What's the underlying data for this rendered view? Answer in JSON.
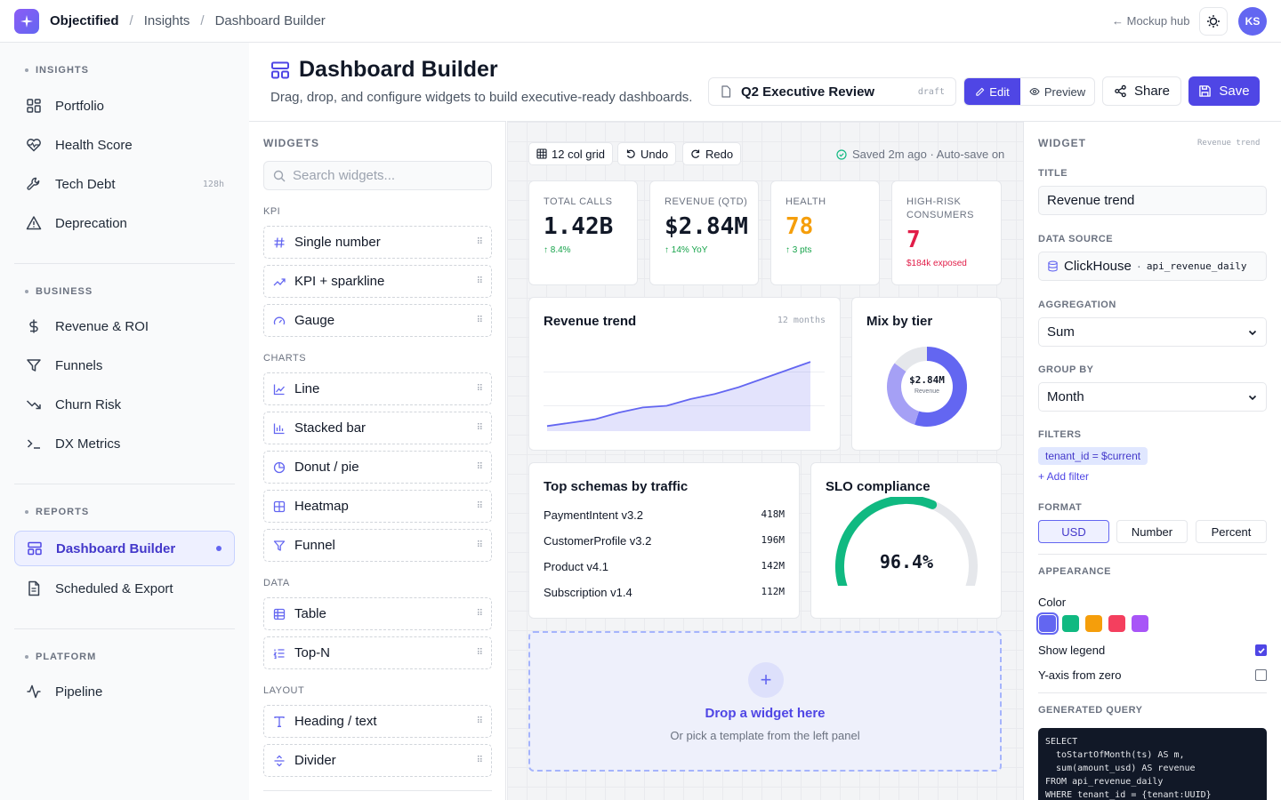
{
  "topbar": {
    "brand": "Objectified",
    "crumb1": "Insights",
    "crumb2": "Dashboard Builder",
    "mockhub": "← Mockup hub",
    "avatar": "KS"
  },
  "sidebar": {
    "sections": [
      {
        "label": "INSIGHTS"
      },
      {
        "label": "BUSINESS"
      },
      {
        "label": "REPORTS"
      },
      {
        "label": "PLATFORM"
      }
    ],
    "items": [
      {
        "label": "Portfolio",
        "icon": "grid-icon"
      },
      {
        "label": "Health Score",
        "icon": "heart-pulse-icon"
      },
      {
        "label": "Tech Debt",
        "icon": "wrench-icon",
        "badge": "128h"
      },
      {
        "label": "Deprecation",
        "icon": "warning-icon"
      },
      {
        "label": "Revenue & ROI",
        "icon": "dollar-icon"
      },
      {
        "label": "Funnels",
        "icon": "funnel-icon"
      },
      {
        "label": "Churn Risk",
        "icon": "trending-down-icon"
      },
      {
        "label": "DX Metrics",
        "icon": "terminal-icon"
      },
      {
        "label": "Dashboard Builder",
        "icon": "layout-icon",
        "active": true
      },
      {
        "label": "Scheduled & Export",
        "icon": "document-icon"
      },
      {
        "label": "Pipeline",
        "icon": "activity-icon"
      }
    ]
  },
  "header": {
    "title": "Dashboard Builder",
    "subtitle": "Drag, drop, and configure widgets to build executive-ready dashboards.",
    "doc_name": "Q2 Executive Review",
    "doc_status": "draft",
    "edit_label": "Edit",
    "preview_label": "Preview",
    "share_label": "Share",
    "save_label": "Save"
  },
  "widgets_panel": {
    "title": "WIDGETS",
    "search_placeholder": "Search widgets...",
    "groups": [
      {
        "label": "KPI",
        "items": [
          "Single number",
          "KPI + sparkline",
          "Gauge"
        ]
      },
      {
        "label": "CHARTS",
        "items": [
          "Line",
          "Stacked bar",
          "Donut / pie",
          "Heatmap",
          "Funnel"
        ]
      },
      {
        "label": "DATA",
        "items": [
          "Table",
          "Top-N"
        ]
      },
      {
        "label": "LAYOUT",
        "items": [
          "Heading / text",
          "Divider"
        ]
      }
    ]
  },
  "canvas": {
    "grid_label": "12 col grid",
    "undo_label": "Undo",
    "redo_label": "Redo",
    "saved_status": "Saved 2m ago · Auto-save on",
    "kpis": [
      {
        "label": "TOTAL CALLS",
        "value": "1.42B",
        "delta": "↑ 8.4%",
        "value_color": "#111827",
        "delta_color": "#16a34a"
      },
      {
        "label": "REVENUE (QTD)",
        "value": "$2.84M",
        "delta": "↑ 14% YoY",
        "value_color": "#111827",
        "delta_color": "#16a34a"
      },
      {
        "label": "HEALTH",
        "value": "78",
        "delta": "↑ 3 pts",
        "value_color": "#f59e0b",
        "delta_color": "#16a34a"
      },
      {
        "label": "HIGH-RISK CONSUMERS",
        "value": "7",
        "delta": "$184k exposed",
        "value_color": "#e11d48",
        "delta_color": "#e11d48"
      }
    ],
    "revenue_trend": {
      "title": "Revenue trend",
      "meta": "12 months"
    },
    "mix_by_tier": {
      "title": "Mix by tier",
      "center_value": "$2.84M",
      "center_label": "Revenue"
    },
    "top_schemas": {
      "title": "Top schemas by traffic",
      "rows": [
        {
          "name": "PaymentIntent v3.2",
          "value": "418M"
        },
        {
          "name": "CustomerProfile v3.2",
          "value": "196M"
        },
        {
          "name": "Product v4.1",
          "value": "142M"
        },
        {
          "name": "Subscription v1.4",
          "value": "112M"
        }
      ]
    },
    "slo": {
      "title": "SLO compliance",
      "value": "96.4%",
      "fraction": 0.964
    },
    "drop": {
      "title": "Drop a widget here",
      "subtitle": "Or pick a template from the left panel"
    }
  },
  "chart_data": [
    {
      "type": "area",
      "title": "Revenue trend",
      "x": [
        1,
        2,
        3,
        4,
        5,
        6,
        7,
        8,
        9,
        10,
        11,
        12
      ],
      "values": [
        3,
        5,
        7,
        11,
        14,
        15,
        19,
        22,
        26,
        31,
        36,
        41
      ],
      "ylim": [
        0,
        50
      ],
      "color": "#6366f1",
      "grid": true
    },
    {
      "type": "pie",
      "title": "Mix by tier",
      "slices": [
        {
          "value": 55,
          "color": "#6366f1"
        },
        {
          "value": 30,
          "color": "#a5a0f5"
        },
        {
          "value": 15,
          "color": "#e5e7eb"
        }
      ]
    }
  ],
  "config": {
    "title": "WIDGET",
    "widget_name": "Revenue trend",
    "title_label": "TITLE",
    "title_value": "Revenue trend",
    "datasource_label": "DATA SOURCE",
    "datasource_name": "ClickHouse",
    "datasource_table": "api_revenue_daily",
    "aggregation_label": "AGGREGATION",
    "aggregation_value": "Sum",
    "groupby_label": "GROUP BY",
    "groupby_value": "Month",
    "filters_label": "FILTERS",
    "filter_chip": "tenant_id = $current",
    "add_filter": "+ Add filter",
    "format_label": "FORMAT",
    "formats": [
      "USD",
      "Number",
      "Percent"
    ],
    "appearance_label": "APPEARANCE",
    "color_label": "Color",
    "colors": [
      "#6366f1",
      "#10b981",
      "#f59e0b",
      "#f43f5e",
      "#a855f7"
    ],
    "show_legend": "Show legend",
    "yaxis_zero": "Y-axis from zero",
    "query_label": "GENERATED QUERY",
    "query": "SELECT\n  toStartOfMonth(ts) AS m,\n  sum(amount_usd) AS revenue\nFROM api_revenue_daily\nWHERE tenant_id = {tenant:UUID}"
  }
}
